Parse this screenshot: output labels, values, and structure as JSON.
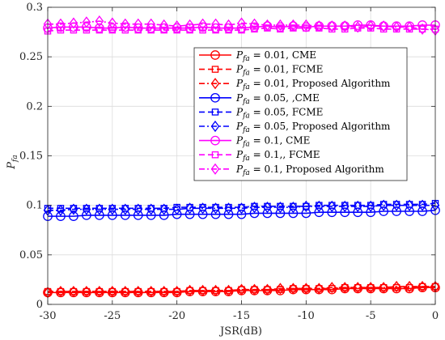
{
  "chart_data": {
    "type": "line",
    "xlabel": "JSR(dB)",
    "ylabel": "P_fa",
    "xlim": [
      -30,
      0
    ],
    "ylim": [
      0,
      0.3
    ],
    "xticks": [
      -30,
      -25,
      -20,
      -15,
      -10,
      -5,
      0
    ],
    "yticks": [
      0,
      0.05,
      0.1,
      0.15,
      0.2,
      0.25,
      0.3
    ],
    "xtick_labels": [
      "-30",
      "-25",
      "-20",
      "-15",
      "-10",
      "-5",
      "0"
    ],
    "ytick_labels": [
      "0",
      "0.05",
      "0.1",
      "0.15",
      "0.2",
      "0.25",
      "0.3"
    ],
    "grid": true,
    "legend_position": "upper-right",
    "x": [
      -30,
      -29,
      -28,
      -27,
      -26,
      -25,
      -24,
      -23,
      -22,
      -21,
      -20,
      -19,
      -18,
      -17,
      -16,
      -15,
      -14,
      -13,
      -12,
      -11,
      -10,
      -9,
      -8,
      -7,
      -6,
      -5,
      -4,
      -3,
      -2,
      -1,
      0
    ],
    "series": [
      {
        "name": "P_fa = 0.01, CME",
        "color": "#ff0000",
        "marker": "circle",
        "dash": "solid",
        "values": [
          0.012,
          0.012,
          0.012,
          0.012,
          0.012,
          0.012,
          0.012,
          0.012,
          0.012,
          0.012,
          0.012,
          0.013,
          0.013,
          0.013,
          0.013,
          0.014,
          0.014,
          0.014,
          0.014,
          0.015,
          0.015,
          0.015,
          0.015,
          0.016,
          0.016,
          0.016,
          0.016,
          0.016,
          0.016,
          0.017,
          0.017
        ]
      },
      {
        "name": "P_fa = 0.01, FCME",
        "color": "#ff0000",
        "marker": "square",
        "dash": "dash",
        "values": [
          0.013,
          0.013,
          0.013,
          0.013,
          0.013,
          0.013,
          0.013,
          0.013,
          0.013,
          0.013,
          0.013,
          0.014,
          0.014,
          0.014,
          0.014,
          0.015,
          0.015,
          0.015,
          0.015,
          0.016,
          0.016,
          0.016,
          0.016,
          0.017,
          0.017,
          0.017,
          0.017,
          0.017,
          0.017,
          0.018,
          0.018
        ]
      },
      {
        "name": "P_fa = 0.01, Proposed Algorithm",
        "color": "#ff0000",
        "marker": "diamond",
        "dash": "dashdot",
        "values": [
          0.012,
          0.013,
          0.013,
          0.013,
          0.013,
          0.013,
          0.013,
          0.013,
          0.013,
          0.013,
          0.013,
          0.014,
          0.014,
          0.014,
          0.014,
          0.015,
          0.015,
          0.015,
          0.016,
          0.016,
          0.016,
          0.016,
          0.017,
          0.017,
          0.017,
          0.017,
          0.017,
          0.018,
          0.018,
          0.018,
          0.018
        ]
      },
      {
        "name": "P_fa = 0.05, ,CME",
        "color": "#0000ff",
        "marker": "circle",
        "dash": "solid",
        "values": [
          0.089,
          0.089,
          0.089,
          0.09,
          0.09,
          0.09,
          0.09,
          0.09,
          0.09,
          0.09,
          0.091,
          0.091,
          0.091,
          0.091,
          0.091,
          0.091,
          0.092,
          0.092,
          0.092,
          0.092,
          0.092,
          0.093,
          0.093,
          0.093,
          0.093,
          0.093,
          0.094,
          0.094,
          0.094,
          0.094,
          0.095
        ]
      },
      {
        "name": "P_fa = 0.05, FCME",
        "color": "#0000ff",
        "marker": "square",
        "dash": "dash",
        "values": [
          0.097,
          0.097,
          0.097,
          0.097,
          0.097,
          0.097,
          0.097,
          0.097,
          0.097,
          0.097,
          0.098,
          0.098,
          0.098,
          0.098,
          0.098,
          0.098,
          0.099,
          0.099,
          0.099,
          0.099,
          0.099,
          0.1,
          0.1,
          0.1,
          0.1,
          0.1,
          0.101,
          0.101,
          0.101,
          0.101,
          0.102
        ]
      },
      {
        "name": "P_fa = 0.05, Proposed Algorithm",
        "color": "#0000ff",
        "marker": "diamond",
        "dash": "dashdot",
        "values": [
          0.095,
          0.095,
          0.096,
          0.096,
          0.096,
          0.096,
          0.096,
          0.096,
          0.096,
          0.096,
          0.096,
          0.097,
          0.097,
          0.097,
          0.097,
          0.097,
          0.098,
          0.098,
          0.098,
          0.098,
          0.099,
          0.099,
          0.099,
          0.099,
          0.099,
          0.099,
          0.1,
          0.1,
          0.1,
          0.1,
          0.1
        ]
      },
      {
        "name": "P_fa = 0.1, CME",
        "color": "#ff00ff",
        "marker": "circle",
        "dash": "solid",
        "values": [
          0.279,
          0.28,
          0.28,
          0.28,
          0.279,
          0.279,
          0.28,
          0.279,
          0.279,
          0.279,
          0.279,
          0.279,
          0.28,
          0.279,
          0.279,
          0.279,
          0.28,
          0.281,
          0.28,
          0.281,
          0.28,
          0.281,
          0.281,
          0.281,
          0.282,
          0.282,
          0.281,
          0.281,
          0.281,
          0.282,
          0.282
        ]
      },
      {
        "name": "P_fa = 0.1,, FCME",
        "color": "#ff00ff",
        "marker": "square",
        "dash": "dash",
        "values": [
          0.276,
          0.277,
          0.277,
          0.277,
          0.277,
          0.277,
          0.277,
          0.277,
          0.277,
          0.277,
          0.277,
          0.277,
          0.277,
          0.277,
          0.277,
          0.277,
          0.278,
          0.279,
          0.278,
          0.279,
          0.279,
          0.279,
          0.278,
          0.278,
          0.279,
          0.279,
          0.278,
          0.278,
          0.278,
          0.278,
          0.278
        ]
      },
      {
        "name": "P_fa = 0.1, Proposed Algorithm",
        "color": "#ff00ff",
        "marker": "diamond",
        "dash": "dashdot",
        "values": [
          0.283,
          0.283,
          0.284,
          0.285,
          0.286,
          0.284,
          0.283,
          0.283,
          0.283,
          0.282,
          0.281,
          0.282,
          0.283,
          0.283,
          0.282,
          0.284,
          0.283,
          0.282,
          0.282,
          0.282,
          0.282,
          0.281,
          0.281,
          0.281,
          0.28,
          0.281,
          0.281,
          0.28,
          0.28,
          0.278,
          0.277
        ]
      }
    ]
  }
}
